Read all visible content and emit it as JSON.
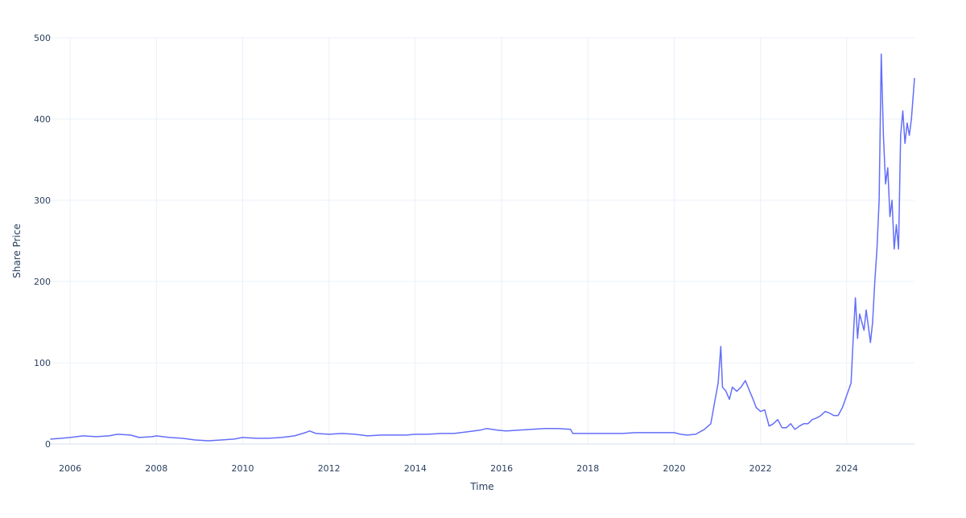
{
  "chart_data": {
    "type": "line",
    "title": "",
    "xlabel": "Time",
    "ylabel": "Share Price",
    "xlim": [
      2005.55,
      2025.57
    ],
    "ylim": [
      0,
      500
    ],
    "x_ticks": [
      2006,
      2008,
      2010,
      2012,
      2014,
      2016,
      2018,
      2020,
      2022,
      2024
    ],
    "x_tick_labels": [
      "2006",
      "2008",
      "2010",
      "2012",
      "2014",
      "2016",
      "2018",
      "2020",
      "2022",
      "2024"
    ],
    "y_ticks": [
      0,
      100,
      200,
      300,
      400,
      500
    ],
    "y_tick_labels": [
      "0",
      "100",
      "200",
      "300",
      "400",
      "500"
    ],
    "grid": true,
    "legend": "none",
    "colors": {
      "series": "#636efa",
      "grid": "#ebf0f8",
      "text": "#2a3f5f"
    },
    "series": [
      {
        "x": [
          2005.55,
          2005.8,
          2006.0,
          2006.3,
          2006.6,
          2006.9,
          2007.1,
          2007.4,
          2007.6,
          2007.9,
          2008.0,
          2008.3,
          2008.6,
          2008.9,
          2009.2,
          2009.5,
          2009.8,
          2010.0,
          2010.3,
          2010.6,
          2010.9,
          2011.2,
          2011.45,
          2011.55,
          2011.7,
          2012.0,
          2012.3,
          2012.6,
          2012.9,
          2013.2,
          2013.5,
          2013.8,
          2014.0,
          2014.3,
          2014.6,
          2014.9,
          2015.2,
          2015.5,
          2015.65,
          2015.9,
          2016.1,
          2016.4,
          2016.7,
          2017.0,
          2017.3,
          2017.6,
          2017.65,
          2017.9,
          2018.2,
          2018.5,
          2018.8,
          2019.1,
          2019.4,
          2019.7,
          2020.0,
          2020.15,
          2020.3,
          2020.5,
          2020.7,
          2020.85,
          2020.95,
          2021.02,
          2021.08,
          2021.12,
          2021.2,
          2021.28,
          2021.35,
          2021.45,
          2021.55,
          2021.65,
          2021.75,
          2021.83,
          2021.9,
          2022.0,
          2022.1,
          2022.2,
          2022.3,
          2022.4,
          2022.5,
          2022.6,
          2022.7,
          2022.8,
          2022.9,
          2023.0,
          2023.1,
          2023.2,
          2023.3,
          2023.4,
          2023.5,
          2023.6,
          2023.7,
          2023.8,
          2023.9,
          2024.0,
          2024.1,
          2024.15,
          2024.2,
          2024.25,
          2024.3,
          2024.35,
          2024.4,
          2024.45,
          2024.5,
          2024.55,
          2024.6,
          2024.65,
          2024.7,
          2024.75,
          2024.8,
          2024.85,
          2024.9,
          2024.95,
          2025.0,
          2025.05,
          2025.1,
          2025.15,
          2025.2,
          2025.25,
          2025.3,
          2025.35,
          2025.4,
          2025.45,
          2025.5,
          2025.57
        ],
        "y": [
          6,
          7,
          8,
          10,
          9,
          10,
          12,
          11,
          8,
          9,
          10,
          8,
          7,
          5,
          4,
          5,
          6,
          8,
          7,
          7,
          8,
          10,
          14,
          16,
          13,
          12,
          13,
          12,
          10,
          11,
          11,
          11,
          12,
          12,
          13,
          13,
          15,
          17,
          19,
          17,
          16,
          17,
          18,
          19,
          19,
          18,
          13,
          13,
          13,
          13,
          13,
          14,
          14,
          14,
          14,
          12,
          11,
          12,
          18,
          25,
          55,
          75,
          120,
          70,
          65,
          55,
          70,
          65,
          70,
          78,
          65,
          55,
          45,
          40,
          42,
          22,
          25,
          30,
          20,
          20,
          25,
          18,
          22,
          25,
          25,
          30,
          32,
          35,
          40,
          38,
          35,
          35,
          45,
          60,
          75,
          130,
          180,
          130,
          160,
          150,
          140,
          165,
          145,
          125,
          150,
          200,
          240,
          300,
          480,
          380,
          320,
          340,
          280,
          300,
          240,
          270,
          240,
          380,
          410,
          370,
          395,
          380,
          400,
          450
        ]
      }
    ]
  }
}
